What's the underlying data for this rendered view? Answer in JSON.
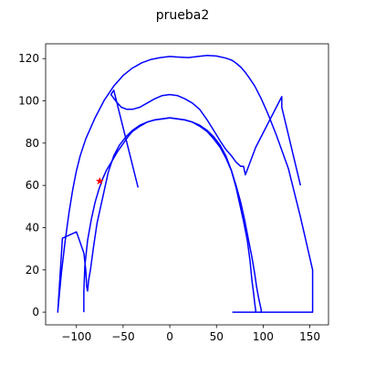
{
  "chart_data": {
    "type": "line",
    "title": "prueba2",
    "xlabel": "",
    "ylabel": "",
    "xlim": [
      -133,
      170
    ],
    "ylim": [
      -6,
      127
    ],
    "xticks": [
      -100,
      -50,
      0,
      50,
      100,
      150
    ],
    "yticks": [
      0,
      20,
      40,
      60,
      80,
      100,
      120
    ],
    "xtick_labels": [
      "−100",
      "−50",
      "0",
      "50",
      "100",
      "150"
    ],
    "ytick_labels": [
      "0",
      "20",
      "40",
      "60",
      "80",
      "100",
      "120"
    ],
    "grid": false,
    "legend": "none",
    "series": [
      {
        "color": "#0000ff",
        "x": [
          67,
          153,
          153,
          140,
          127,
          114,
          105,
          98,
          91,
          85,
          80,
          76,
          72,
          69,
          66,
          60,
          50,
          40,
          30,
          20,
          10,
          0,
          -10,
          -20,
          -30,
          -40,
          -50,
          -60,
          -70,
          -80,
          -90,
          -96,
          -100,
          -104,
          -108,
          -112,
          -116,
          -119,
          -120,
          -115,
          -100,
          -92,
          -90,
          -89,
          -88,
          -87,
          -85,
          -82,
          -78,
          -72,
          -66,
          -60,
          -54,
          -47,
          -40,
          -32,
          -24,
          -16,
          -8,
          0,
          8,
          16,
          24,
          32,
          40,
          47,
          54,
          60,
          66,
          71,
          75,
          79,
          83,
          86,
          88,
          90,
          91,
          92,
          92,
          92
        ],
        "y": [
          0,
          0,
          20,
          45,
          68,
          84,
          94,
          101,
          107,
          111,
          114,
          116,
          117.5,
          118.5,
          119.3,
          120.2,
          121.2,
          121.5,
          121,
          120.5,
          120.7,
          121,
          120.5,
          119.6,
          118,
          115.5,
          112,
          107,
          100.5,
          92,
          82,
          74,
          67,
          58,
          47,
          34,
          19,
          5,
          0,
          35,
          38,
          28,
          20,
          12,
          10,
          15,
          20,
          30,
          42,
          54,
          66,
          74,
          79,
          83,
          86,
          88.5,
          90,
          91,
          91.5,
          92,
          91.5,
          91,
          90,
          88.5,
          86,
          83,
          79,
          74,
          67,
          59,
          51,
          43,
          34,
          24,
          15,
          8,
          4,
          1,
          0,
          0
        ]
      },
      {
        "color": "#0000ff",
        "x": [
          -34,
          -60,
          -63,
          -58,
          -52,
          -46,
          -40,
          -32,
          -24,
          -16,
          -8,
          0,
          8,
          16,
          24,
          32,
          40,
          47,
          54,
          60,
          66,
          71,
          76,
          79,
          81,
          92,
          120,
          120,
          140
        ],
        "y": [
          59,
          105,
          103,
          100,
          97,
          96,
          96,
          97,
          99,
          101,
          102.5,
          103,
          102.5,
          101,
          99,
          96,
          91,
          86,
          81,
          77,
          74,
          71,
          69,
          69,
          65,
          78,
          102,
          97,
          60
        ]
      },
      {
        "color": "#0000ff",
        "x": [
          -92,
          -92,
          -91,
          -88,
          -84,
          -80,
          -76,
          -72,
          -68,
          -64,
          -60,
          -56,
          -52,
          -48,
          -44,
          -40,
          -32,
          -24,
          -16,
          -8,
          0,
          8,
          16,
          24,
          32,
          40,
          47,
          54,
          60,
          66,
          71,
          76,
          80,
          84,
          88,
          91,
          93,
          95,
          97,
          98,
          98,
          97,
          97
        ],
        "y": [
          0,
          10,
          22,
          34,
          44,
          52,
          58,
          63,
          67,
          70,
          73,
          76,
          78.5,
          81,
          83.5,
          85.5,
          88,
          90,
          91,
          91.5,
          92,
          91.5,
          91,
          90,
          88,
          85.5,
          82,
          78,
          73,
          67,
          60,
          52,
          44,
          35,
          26,
          18,
          12,
          7,
          3,
          1,
          0,
          0,
          0
        ]
      }
    ],
    "markers": [
      {
        "x": -75,
        "y": 62,
        "symbol": "star",
        "color": "#ff0000"
      }
    ]
  }
}
